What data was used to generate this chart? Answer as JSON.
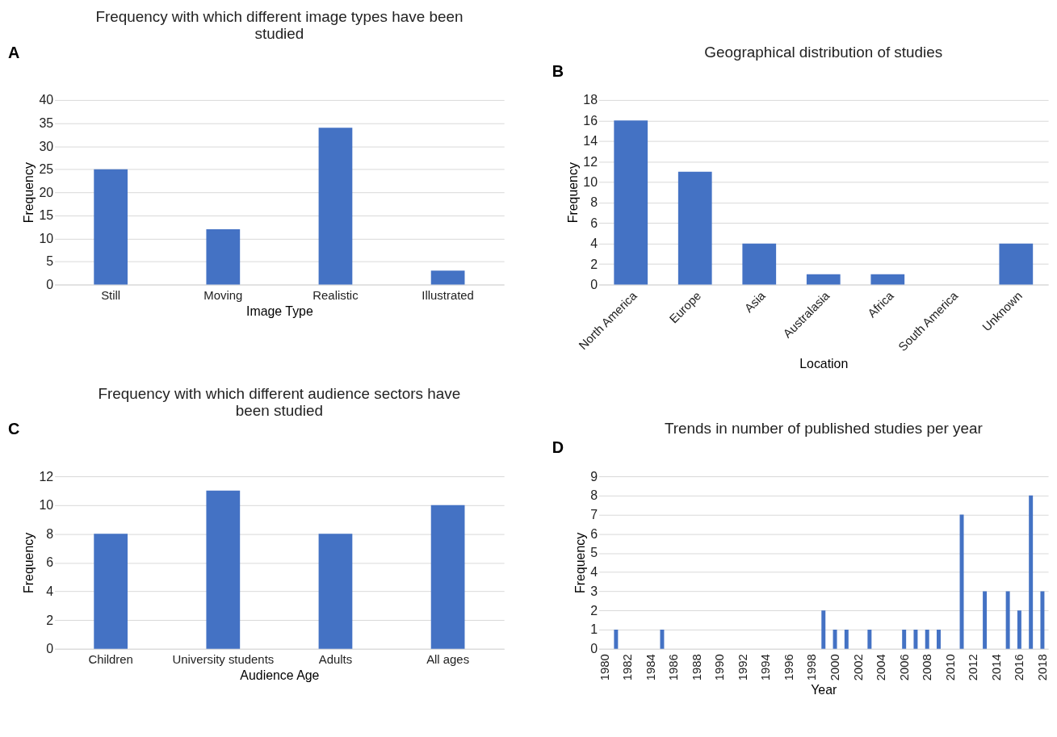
{
  "chart_data": [
    {
      "type": "bar",
      "title": "Frequency with which different image types have been studied",
      "xlabel": "Image Type",
      "ylabel": "Frequency",
      "annotations": [
        "A"
      ],
      "categories": [
        "Still",
        "Moving",
        "Realistic",
        "Illustrated"
      ],
      "values": [
        25,
        12,
        34,
        3
      ],
      "color": "#4472c4",
      "ylim": [
        0,
        40
      ],
      "yticks": [
        0,
        5,
        10,
        15,
        20,
        25,
        30,
        35,
        40
      ],
      "grid": "y"
    },
    {
      "type": "bar",
      "title": "Geographical distribution of studies",
      "xlabel": "Location",
      "ylabel": "Frequency",
      "annotations": [
        "B"
      ],
      "categories": [
        "North America",
        "Europe",
        "Asia",
        "Australasia",
        "Africa",
        "South America",
        "Unknown"
      ],
      "values": [
        16,
        11,
        4,
        1,
        1,
        0,
        4
      ],
      "color": "#4472c4",
      "ylim": [
        0,
        18
      ],
      "yticks": [
        0,
        2,
        4,
        6,
        8,
        10,
        12,
        14,
        16,
        18
      ],
      "grid": "y"
    },
    {
      "type": "bar",
      "title": "Frequency with which different audience sectors have been studied",
      "xlabel": "Audience Age",
      "ylabel": "Frequency",
      "annotations": [
        "C"
      ],
      "categories": [
        "Children",
        "University students",
        "Adults",
        "All ages"
      ],
      "values": [
        8,
        11,
        8,
        10
      ],
      "color": "#4472c4",
      "ylim": [
        0,
        12
      ],
      "yticks": [
        0,
        2,
        4,
        6,
        8,
        10,
        12
      ],
      "grid": "y"
    },
    {
      "type": "bar",
      "title": "Trends in number of published studies per year",
      "xlabel": "Year",
      "ylabel": "Frequency",
      "annotations": [
        "D"
      ],
      "categories": [
        "1980",
        null,
        "1982",
        null,
        "1984",
        null,
        "1986",
        null,
        "1988",
        null,
        "1990",
        null,
        "1992",
        null,
        "1994",
        null,
        "1996",
        null,
        "1998",
        null,
        "2000",
        null,
        "2002",
        null,
        "2004",
        null,
        "2006",
        null,
        "2008",
        null,
        "2010",
        null,
        "2012",
        null,
        "2014",
        null,
        "2016",
        null,
        "2018"
      ],
      "values": [
        0,
        1,
        0,
        0,
        0,
        1,
        0,
        0,
        0,
        0,
        0,
        0,
        0,
        0,
        0,
        0,
        0,
        0,
        0,
        2,
        1,
        1,
        0,
        1,
        0,
        0,
        1,
        1,
        1,
        1,
        0,
        7,
        0,
        3,
        0,
        3,
        2,
        8,
        3
      ],
      "color": "#4472c4",
      "ylim": [
        0,
        9
      ],
      "yticks": [
        0,
        1,
        2,
        3,
        4,
        5,
        6,
        7,
        8,
        9
      ],
      "grid": "y"
    }
  ]
}
